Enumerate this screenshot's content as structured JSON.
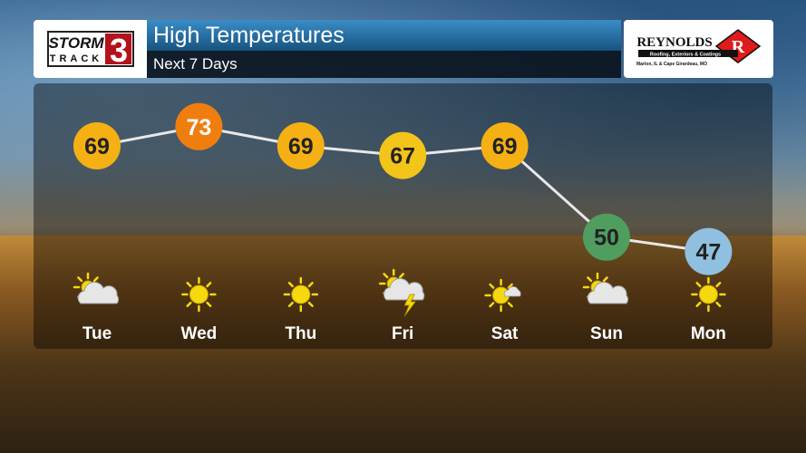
{
  "header": {
    "title": "High Temperatures",
    "subtitle": "Next 7 Days"
  },
  "logo": {
    "line1": "STORM",
    "line2": "TRACK",
    "number": "3",
    "accent": "#b5121b"
  },
  "sponsor": {
    "name": "REYNOLDS",
    "letter": "R",
    "tagline": "Roofing, Exteriors & Coatings",
    "location": "Marion, IL & Cape Girardeau, MO"
  },
  "chart_data": {
    "type": "line",
    "categories": [
      "Tue",
      "Wed",
      "Thu",
      "Fri",
      "Sat",
      "Sun",
      "Mon"
    ],
    "values": [
      69,
      73,
      69,
      67,
      69,
      50,
      47
    ],
    "colors": [
      "#f5b014",
      "#f07e0e",
      "#f5b014",
      "#f3c419",
      "#f5b014",
      "#4f9d5f",
      "#8fc0e0"
    ],
    "icons": [
      "partly-cloudy",
      "sunny",
      "sunny",
      "thunderstorm",
      "partly-sunny",
      "partly-cloudy",
      "sunny"
    ],
    "title": "High Temperatures",
    "subtitle": "Next 7 Days"
  }
}
